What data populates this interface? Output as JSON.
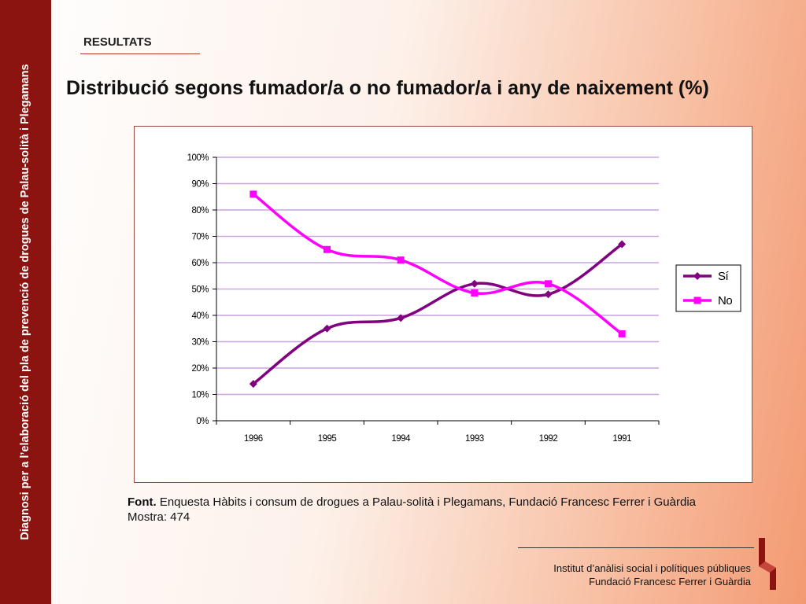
{
  "sidebar": {
    "vertical_text": "Diagnosi per a l’elaboració del pla de prevenció de drogues de Palau-solità i Plegamans"
  },
  "header": {
    "section": "RESULTATS",
    "title": "Distribució segons fumador/a o no fumador/a i any de naixement (%)"
  },
  "colors": {
    "band": "#8b1410",
    "si_series": "#800080",
    "no_series": "#ff00ff",
    "gridline": "#c9a4e0"
  },
  "chart_data": {
    "type": "line",
    "categories": [
      "1996",
      "1995",
      "1994",
      "1993",
      "1992",
      "1991"
    ],
    "y_ticks": [
      "0%",
      "10%",
      "20%",
      "30%",
      "40%",
      "50%",
      "60%",
      "70%",
      "80%",
      "90%",
      "100%"
    ],
    "ylim": [
      0,
      100
    ],
    "grid": true,
    "legend_position": "right",
    "series": [
      {
        "name": "Sí",
        "values": [
          14,
          35,
          39,
          52,
          48,
          67
        ]
      },
      {
        "name": "No",
        "values": [
          86,
          65,
          61,
          48.5,
          52,
          33
        ]
      }
    ]
  },
  "source": {
    "label": "Font.",
    "text": " Enquesta Hàbits i consum de drogues a Palau-solità i Plegamans, Fundació Francesc Ferrer i Guàrdia",
    "sample": "Mostra: 474"
  },
  "footer": {
    "line1": "Institut d’anàlisi social i polítiques públiques",
    "line2": "Fundació Francesc Ferrer i Guàrdia"
  }
}
